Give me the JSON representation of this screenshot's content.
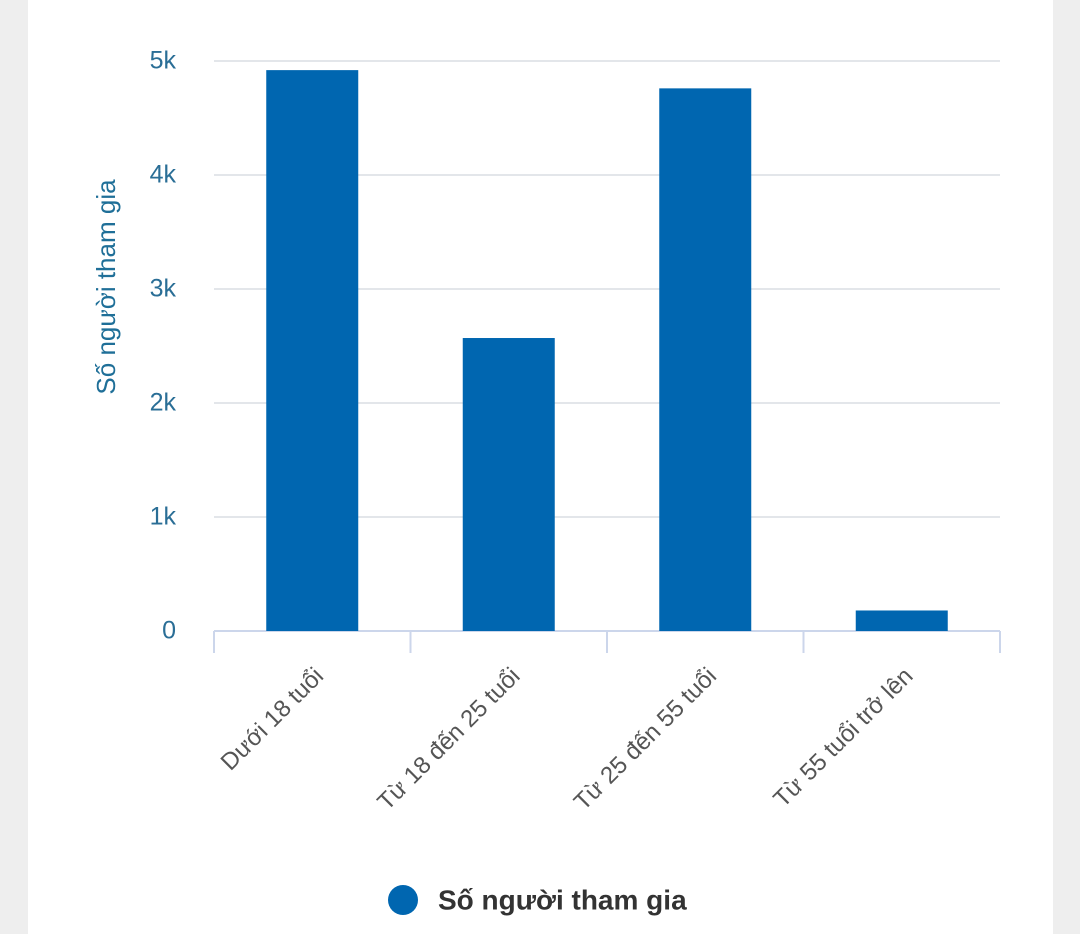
{
  "chart_data": {
    "type": "bar",
    "y_axis_label": "Số người tham gia",
    "categories": [
      "Dưới 18 tuổi",
      "Từ 18 đến 25 tuổi",
      "Từ 25 đến 55 tuổi",
      "Từ 55 tuổi trở lên"
    ],
    "series": [
      {
        "name": "Số người tham gia",
        "color": "#0066b0",
        "values": [
          4920,
          2570,
          4760,
          180
        ]
      }
    ],
    "ylim": [
      0,
      5000
    ],
    "yticks": [
      0,
      {
        "value": 1000,
        "label": "1k"
      },
      {
        "value": 2000,
        "label": "2k"
      },
      {
        "value": 3000,
        "label": "3k"
      },
      {
        "value": 4000,
        "label": "4k"
      },
      {
        "value": 5000,
        "label": "5k"
      }
    ],
    "grid": true,
    "legend": "bottom"
  }
}
